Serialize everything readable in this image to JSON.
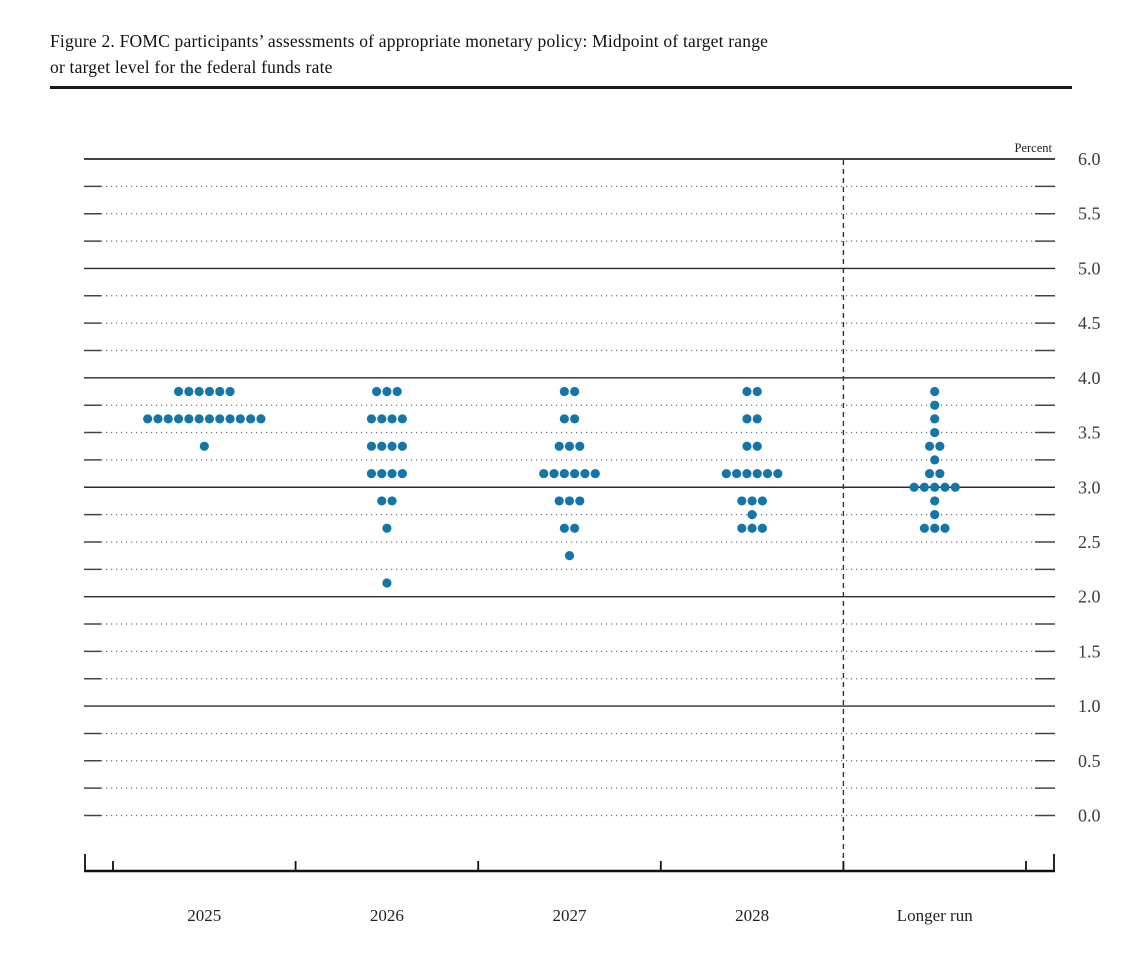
{
  "figure": {
    "title_line1": "Figure 2. FOMC participants’ assessments of appropriate monetary policy: Midpoint of target range",
    "title_line2": "or target level for the federal funds rate"
  },
  "chart_data": {
    "type": "scatter",
    "subtype": "fomc-dot-plot",
    "title": "FOMC participants’ assessments of appropriate monetary policy: Midpoint of target range or target level for the federal funds rate",
    "unit_label": "Percent",
    "categories": [
      "2025",
      "2026",
      "2027",
      "2028",
      "Longer run"
    ],
    "ylim": [
      0.0,
      6.0
    ],
    "y_minor_step": 0.25,
    "y_solid_lines": [
      6.0,
      5.0,
      4.0,
      3.0,
      2.0,
      1.0
    ],
    "y_tick_labels": [
      {
        "value": 6.0,
        "text": "6.0"
      },
      {
        "value": 5.5,
        "text": "5.5"
      },
      {
        "value": 5.0,
        "text": "5.0"
      },
      {
        "value": 4.5,
        "text": "4.5"
      },
      {
        "value": 4.0,
        "text": "4.0"
      },
      {
        "value": 3.5,
        "text": "3.5"
      },
      {
        "value": 3.0,
        "text": "3.0"
      },
      {
        "value": 2.5,
        "text": "2.5"
      },
      {
        "value": 2.0,
        "text": "2.0"
      },
      {
        "value": 1.5,
        "text": "1.5"
      },
      {
        "value": 1.0,
        "text": "1.0"
      },
      {
        "value": 0.5,
        "text": "0.5"
      },
      {
        "value": 0.0,
        "text": "0.0"
      }
    ],
    "separator_after_category_index": 3,
    "dot_color": "#1476a8",
    "series": [
      {
        "name": "2025",
        "dots": [
          {
            "rate": 3.875,
            "count": 6
          },
          {
            "rate": 3.625,
            "count": 12
          },
          {
            "rate": 3.375,
            "count": 1
          }
        ]
      },
      {
        "name": "2026",
        "dots": [
          {
            "rate": 3.875,
            "count": 3
          },
          {
            "rate": 3.625,
            "count": 4
          },
          {
            "rate": 3.375,
            "count": 4
          },
          {
            "rate": 3.125,
            "count": 4
          },
          {
            "rate": 2.875,
            "count": 2
          },
          {
            "rate": 2.625,
            "count": 1
          },
          {
            "rate": 2.125,
            "count": 1
          }
        ]
      },
      {
        "name": "2027",
        "dots": [
          {
            "rate": 3.875,
            "count": 2
          },
          {
            "rate": 3.625,
            "count": 2
          },
          {
            "rate": 3.375,
            "count": 3
          },
          {
            "rate": 3.125,
            "count": 6
          },
          {
            "rate": 2.875,
            "count": 3
          },
          {
            "rate": 2.625,
            "count": 2
          },
          {
            "rate": 2.375,
            "count": 1
          }
        ]
      },
      {
        "name": "2028",
        "dots": [
          {
            "rate": 3.875,
            "count": 2
          },
          {
            "rate": 3.625,
            "count": 2
          },
          {
            "rate": 3.375,
            "count": 2
          },
          {
            "rate": 3.125,
            "count": 6
          },
          {
            "rate": 2.875,
            "count": 3
          },
          {
            "rate": 2.75,
            "count": 1
          },
          {
            "rate": 2.625,
            "count": 3
          }
        ]
      },
      {
        "name": "Longer run",
        "dots": [
          {
            "rate": 3.875,
            "count": 1
          },
          {
            "rate": 3.75,
            "count": 1
          },
          {
            "rate": 3.625,
            "count": 1
          },
          {
            "rate": 3.5,
            "count": 1
          },
          {
            "rate": 3.375,
            "count": 2
          },
          {
            "rate": 3.25,
            "count": 1
          },
          {
            "rate": 3.125,
            "count": 2
          },
          {
            "rate": 3.0,
            "count": 5
          },
          {
            "rate": 2.875,
            "count": 1
          },
          {
            "rate": 2.75,
            "count": 1
          },
          {
            "rate": 2.625,
            "count": 3
          }
        ]
      }
    ]
  }
}
